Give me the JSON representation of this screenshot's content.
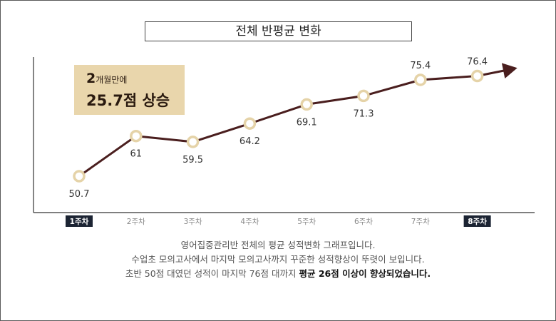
{
  "title": "전체 반평균 변화",
  "callout": {
    "line1_num": "2",
    "line1_text": "개월만에",
    "line2": "25.7점 상승"
  },
  "description": {
    "line1": "영어집중관리반 전체의 평균 성적변화 그래프입니다.",
    "line2": "수업초 모의고사에서 마지막 모의고사까지 꾸준한 성적향상이 뚜렷이 보입니다.",
    "line3_prefix": "초반 50점 대였던 성적이 마지막 76점 대까지 ",
    "line3_bold": "평균 26점 이상이 향상되었습니다."
  },
  "chart_data": {
    "type": "line",
    "title": "전체 반평균 변화",
    "categories": [
      "1주차",
      "2주차",
      "3주차",
      "4주차",
      "5주차",
      "6주차",
      "7주차",
      "8주차"
    ],
    "series": [
      {
        "values": [
          50.7,
          61,
          59.5,
          64.2,
          69.1,
          71.3,
          75.4,
          76.4
        ]
      }
    ],
    "data_labels": [
      "50.7",
      "61",
      "59.5",
      "64.2",
      "69.1",
      "71.3",
      "75.4",
      "76.4"
    ],
    "highlighted_categories": [
      "1주차",
      "8주차"
    ],
    "grid": false,
    "colors": {
      "line": "#4a1e1e",
      "marker_ring": "#e5d3a8",
      "highlight_bg": "#1c2433",
      "callout_bg": "#e9d6ac"
    }
  }
}
